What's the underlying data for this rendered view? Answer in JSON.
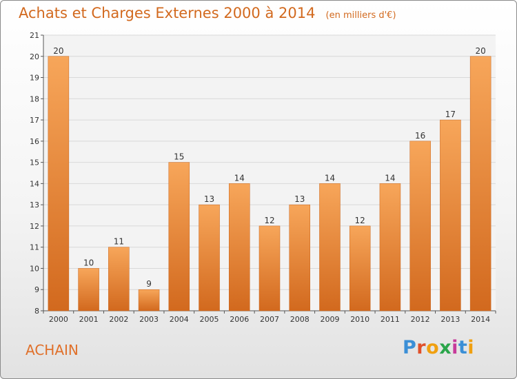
{
  "chart_title": "Achats et Charges Externes 2000 à 2014",
  "chart_unit": "(en milliers d'€)",
  "place_name": "ACHAIN",
  "logo": {
    "text": "Proxiti",
    "letter_colors": [
      "#3b8fd6",
      "#e0502a",
      "#f0a010",
      "#2aa54a",
      "#c73a9a",
      "#3b8fd6",
      "#f0a010"
    ]
  },
  "colors": {
    "bar_light": "#f7a65a",
    "bar_dark": "#d2691e",
    "title": "#d2691e",
    "grid": "#d8d8d8"
  },
  "chart_data": {
    "type": "bar",
    "categories": [
      "2000",
      "2001",
      "2002",
      "2003",
      "2004",
      "2005",
      "2006",
      "2007",
      "2008",
      "2009",
      "2010",
      "2011",
      "2012",
      "2013",
      "2014"
    ],
    "values": [
      20,
      10,
      11,
      9,
      15,
      13,
      14,
      12,
      13,
      14,
      12,
      14,
      16,
      17,
      20
    ],
    "ylim": [
      8,
      21
    ],
    "yticks": [
      8,
      9,
      10,
      11,
      12,
      13,
      14,
      15,
      16,
      17,
      18,
      19,
      20,
      21
    ],
    "grid": true,
    "legend": "none"
  }
}
